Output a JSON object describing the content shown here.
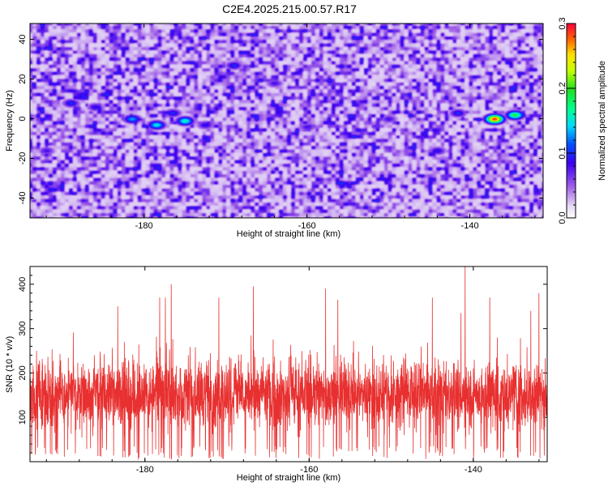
{
  "title": "C2E4.2025.215.00.57.R17",
  "chart_data": [
    {
      "type": "heatmap",
      "xlabel": "Height of straight line (km)",
      "ylabel": "Frequency (Hz)",
      "xlim": [
        -194,
        -131
      ],
      "ylim": [
        -50,
        48
      ],
      "xticks": [
        -180,
        -160,
        -140
      ],
      "yticks": [
        -40,
        -20,
        0,
        20,
        40
      ],
      "colorbar": {
        "label": "Normalized spectral amplitude",
        "range": [
          0,
          0.3
        ],
        "ticks": [
          "0.0",
          "0.1",
          "0.2",
          "0.3"
        ]
      },
      "hotspots": [
        {
          "x": -181.5,
          "y": 0,
          "amplitude": 0.13
        },
        {
          "x": -178.5,
          "y": -3,
          "amplitude": 0.15
        },
        {
          "x": -175,
          "y": -1,
          "amplitude": 0.16
        },
        {
          "x": -172.5,
          "y": -3,
          "amplitude": 0.09
        },
        {
          "x": -189,
          "y": 8,
          "amplitude": 0.1
        },
        {
          "x": -186,
          "y": 6,
          "amplitude": 0.09
        },
        {
          "x": -176.5,
          "y": 3,
          "amplitude": 0.1
        },
        {
          "x": -169,
          "y": 27,
          "amplitude": 0.1
        },
        {
          "x": -164,
          "y": 18,
          "amplitude": 0.08
        },
        {
          "x": -144,
          "y": -16,
          "amplitude": 0.09
        },
        {
          "x": -137,
          "y": 0,
          "amplitude": 0.29
        },
        {
          "x": -134.5,
          "y": 2,
          "amplitude": 0.19
        },
        {
          "x": -141.5,
          "y": 3,
          "amplitude": 0.1
        },
        {
          "x": -150,
          "y": 0,
          "amplitude": 0.08
        },
        {
          "x": -160,
          "y": -4,
          "amplitude": 0.08
        },
        {
          "x": -192,
          "y": -16,
          "amplitude": 0.08
        }
      ]
    },
    {
      "type": "line",
      "xlabel": "Height of straight line (km)",
      "ylabel": "SNR (10 * v/v)",
      "xlim": [
        -194,
        -131
      ],
      "ylim": [
        0,
        440
      ],
      "xticks": [
        -180,
        -160,
        -140
      ],
      "yticks": [
        100,
        200,
        300,
        400
      ],
      "color": "#e83030",
      "n_samples": 3000,
      "mean": 125,
      "typical_range": [
        40,
        250
      ],
      "peaks": [
        {
          "x": -183.3,
          "y": 350
        },
        {
          "x": -178.2,
          "y": 370
        },
        {
          "x": -177.5,
          "y": 370
        },
        {
          "x": -176.8,
          "y": 400
        },
        {
          "x": -171,
          "y": 370
        },
        {
          "x": -166.8,
          "y": 395
        },
        {
          "x": -158,
          "y": 390
        },
        {
          "x": -156.5,
          "y": 365
        },
        {
          "x": -145,
          "y": 370
        },
        {
          "x": -141.5,
          "y": 335
        },
        {
          "x": -141,
          "y": 440
        },
        {
          "x": -138,
          "y": 370
        },
        {
          "x": -133,
          "y": 340
        },
        {
          "x": -132,
          "y": 380
        }
      ]
    }
  ]
}
